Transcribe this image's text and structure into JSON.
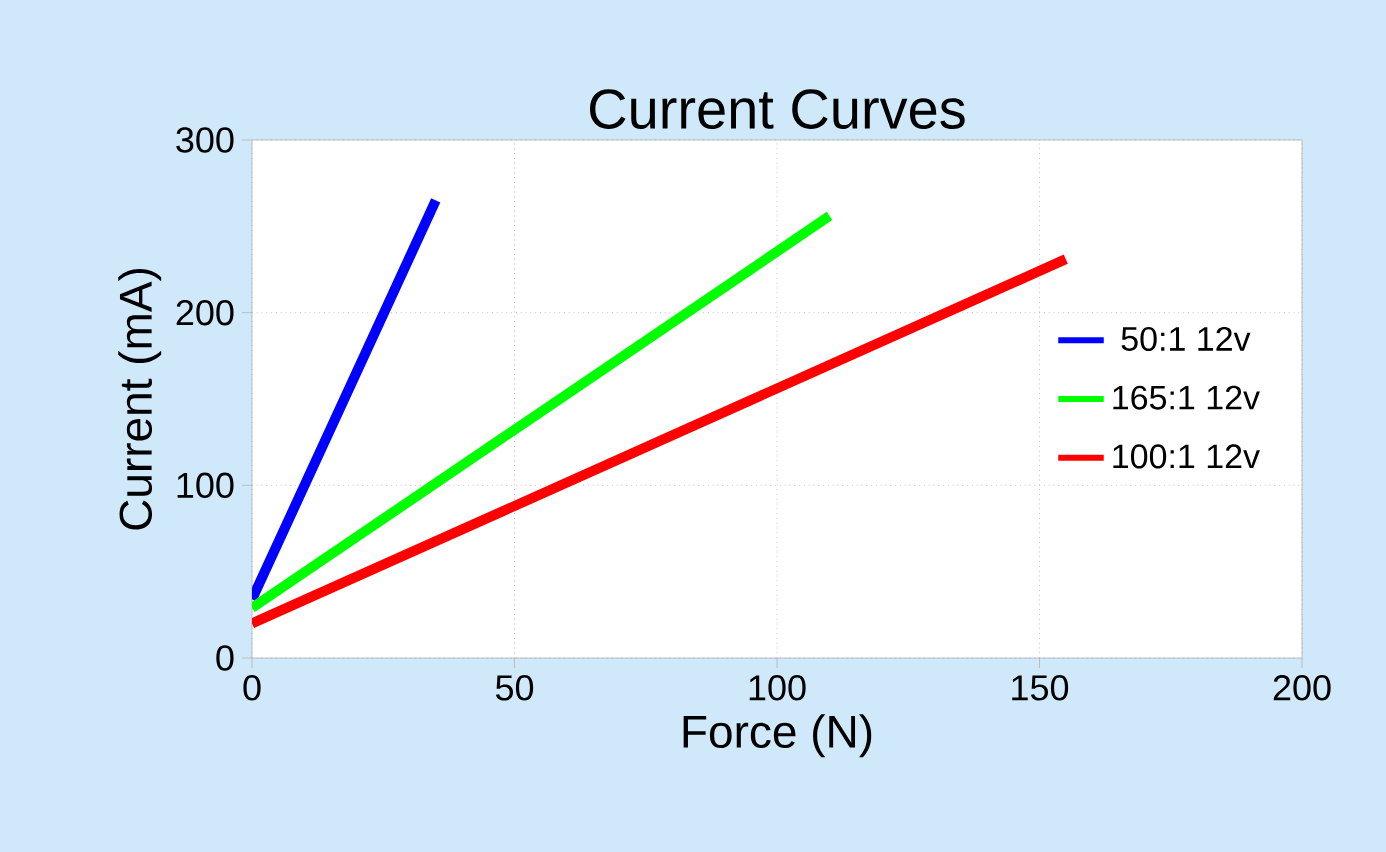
{
  "chart_data": {
    "type": "line",
    "title": "Current Curves",
    "xlabel": "Force (N)",
    "ylabel": "Current (mA)",
    "xlim": [
      0,
      200
    ],
    "xticks": [
      0,
      50,
      100,
      150,
      200
    ],
    "ylim": [
      0,
      300
    ],
    "yticks": [
      0,
      100,
      200,
      300
    ],
    "grid": true,
    "legend": "right",
    "line_style": "solid",
    "marker": "none",
    "series": [
      {
        "name": "50:1 12v",
        "color": "#0000ff",
        "x": [
          0,
          35
        ],
        "values": [
          34,
          265
        ]
      },
      {
        "name": "165:1 12v",
        "color": "#00ff00",
        "x": [
          0,
          110
        ],
        "values": [
          29,
          256
        ]
      },
      {
        "name": "100:1 12v",
        "color": "#ff0000",
        "x": [
          0,
          155
        ],
        "values": [
          20,
          231
        ]
      }
    ]
  }
}
